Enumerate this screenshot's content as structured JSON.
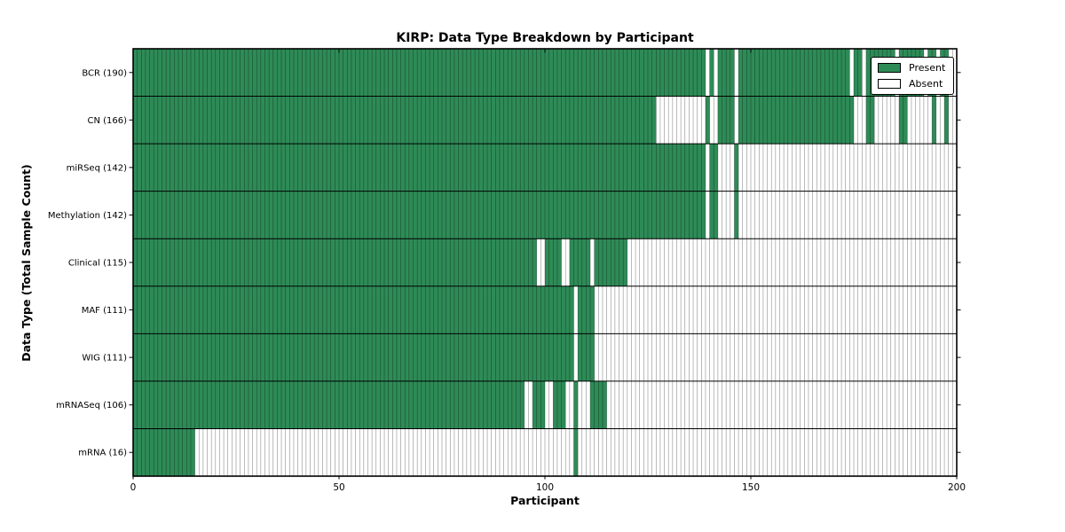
{
  "chart_data": {
    "type": "heatmap",
    "title": "KIRP: Data Type Breakdown by Participant",
    "xlabel": "Participant",
    "ylabel": "Data Type (Total Sample Count)",
    "x_ticks": [
      0,
      50,
      100,
      150,
      200
    ],
    "x_range": [
      0,
      200
    ],
    "n_participants": 200,
    "cell_states": [
      "Present",
      "Absent"
    ],
    "colors": {
      "present": "#2e8b57",
      "absent": "#ffffff",
      "cell_edge": "rgba(0,0,0,0.45)",
      "frame": "#000000"
    },
    "legend": {
      "position": "top-right",
      "entries": [
        {
          "label": "Present",
          "key": "present"
        },
        {
          "label": "Absent",
          "key": "absent"
        }
      ]
    },
    "rows": [
      {
        "label": "BCR (190)",
        "data_type": "BCR",
        "total_samples": 190,
        "present_ranges": [
          [
            1,
            139
          ],
          [
            141,
            141
          ],
          [
            143,
            146
          ],
          [
            148,
            174
          ],
          [
            176,
            177
          ],
          [
            179,
            185
          ],
          [
            187,
            192
          ],
          [
            194,
            195
          ],
          [
            197,
            198
          ]
        ]
      },
      {
        "label": "CN (166)",
        "data_type": "CN",
        "total_samples": 166,
        "present_ranges": [
          [
            1,
            127
          ],
          [
            140,
            140
          ],
          [
            143,
            146
          ],
          [
            148,
            175
          ],
          [
            179,
            180
          ],
          [
            187,
            188
          ],
          [
            195,
            195
          ],
          [
            198,
            198
          ]
        ]
      },
      {
        "label": "miRSeq (142)",
        "data_type": "miRSeq",
        "total_samples": 142,
        "present_ranges": [
          [
            1,
            139
          ],
          [
            141,
            142
          ],
          [
            147,
            147
          ]
        ]
      },
      {
        "label": "Methylation (142)",
        "data_type": "Methylation",
        "total_samples": 142,
        "present_ranges": [
          [
            1,
            139
          ],
          [
            141,
            142
          ],
          [
            147,
            147
          ]
        ]
      },
      {
        "label": "Clinical (115)",
        "data_type": "Clinical",
        "total_samples": 115,
        "present_ranges": [
          [
            1,
            98
          ],
          [
            101,
            104
          ],
          [
            107,
            111
          ],
          [
            113,
            120
          ]
        ]
      },
      {
        "label": "MAF (111)",
        "data_type": "MAF",
        "total_samples": 111,
        "present_ranges": [
          [
            1,
            107
          ],
          [
            109,
            112
          ]
        ]
      },
      {
        "label": "WIG (111)",
        "data_type": "WIG",
        "total_samples": 111,
        "present_ranges": [
          [
            1,
            107
          ],
          [
            109,
            112
          ]
        ]
      },
      {
        "label": "mRNASeq (106)",
        "data_type": "mRNASeq",
        "total_samples": 106,
        "present_ranges": [
          [
            1,
            95
          ],
          [
            98,
            100
          ],
          [
            103,
            105
          ],
          [
            108,
            108
          ],
          [
            112,
            115
          ]
        ]
      },
      {
        "label": "mRNA (16)",
        "data_type": "mRNA",
        "total_samples": 16,
        "present_ranges": [
          [
            1,
            15
          ],
          [
            108,
            108
          ]
        ]
      }
    ]
  }
}
